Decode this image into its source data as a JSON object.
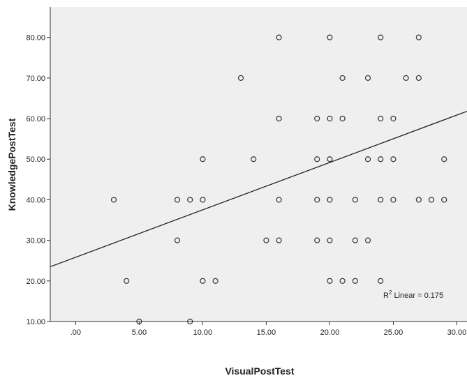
{
  "chart_data": {
    "type": "scatter",
    "xlabel": "VisualPostTest",
    "ylabel": "KnowledgePostTest",
    "xlim": [
      -2.0,
      30.8
    ],
    "ylim": [
      10,
      87.5
    ],
    "x_ticks": [
      0,
      5,
      10,
      15,
      20,
      25,
      30
    ],
    "x_tick_labels": [
      ".00",
      "5.00",
      "10.00",
      "15.00",
      "20.00",
      "25.00",
      "30.00"
    ],
    "y_ticks": [
      10,
      20,
      30,
      40,
      50,
      60,
      70,
      80
    ],
    "y_tick_labels": [
      "10.00",
      "20.00",
      "30.00",
      "40.00",
      "50.00",
      "60.00",
      "70.00",
      "80.00"
    ],
    "grid": false,
    "background_color": "#efefef",
    "marker_color": "#333333",
    "points": [
      {
        "x": 16,
        "y": 80
      },
      {
        "x": 20,
        "y": 80
      },
      {
        "x": 24,
        "y": 80
      },
      {
        "x": 27,
        "y": 80
      },
      {
        "x": 13,
        "y": 70
      },
      {
        "x": 21,
        "y": 70
      },
      {
        "x": 23,
        "y": 70
      },
      {
        "x": 26,
        "y": 70
      },
      {
        "x": 27,
        "y": 70
      },
      {
        "x": 16,
        "y": 60
      },
      {
        "x": 19,
        "y": 60
      },
      {
        "x": 20,
        "y": 60
      },
      {
        "x": 21,
        "y": 60
      },
      {
        "x": 24,
        "y": 60
      },
      {
        "x": 25,
        "y": 60
      },
      {
        "x": 10,
        "y": 50
      },
      {
        "x": 14,
        "y": 50
      },
      {
        "x": 19,
        "y": 50
      },
      {
        "x": 20,
        "y": 50
      },
      {
        "x": 23,
        "y": 50
      },
      {
        "x": 24,
        "y": 50
      },
      {
        "x": 25,
        "y": 50
      },
      {
        "x": 29,
        "y": 50
      },
      {
        "x": 3,
        "y": 40
      },
      {
        "x": 8,
        "y": 40
      },
      {
        "x": 9,
        "y": 40
      },
      {
        "x": 10,
        "y": 40
      },
      {
        "x": 16,
        "y": 40
      },
      {
        "x": 19,
        "y": 40
      },
      {
        "x": 20,
        "y": 40
      },
      {
        "x": 22,
        "y": 40
      },
      {
        "x": 24,
        "y": 40
      },
      {
        "x": 25,
        "y": 40
      },
      {
        "x": 27,
        "y": 40
      },
      {
        "x": 28,
        "y": 40
      },
      {
        "x": 29,
        "y": 40
      },
      {
        "x": 8,
        "y": 30
      },
      {
        "x": 15,
        "y": 30
      },
      {
        "x": 16,
        "y": 30
      },
      {
        "x": 19,
        "y": 30
      },
      {
        "x": 20,
        "y": 30
      },
      {
        "x": 22,
        "y": 30
      },
      {
        "x": 23,
        "y": 30
      },
      {
        "x": 4,
        "y": 20
      },
      {
        "x": 10,
        "y": 20
      },
      {
        "x": 11,
        "y": 20
      },
      {
        "x": 20,
        "y": 20
      },
      {
        "x": 21,
        "y": 20
      },
      {
        "x": 22,
        "y": 20
      },
      {
        "x": 24,
        "y": 20
      },
      {
        "x": 5,
        "y": 10
      },
      {
        "x": 9,
        "y": 10
      }
    ],
    "fit_line": {
      "type": "linear",
      "x": [
        -2.0,
        30.8
      ],
      "y": [
        23.5,
        61.8
      ]
    },
    "annotation": {
      "sup": "2",
      "prefix": "R",
      "text": " Linear = 0.175"
    }
  }
}
